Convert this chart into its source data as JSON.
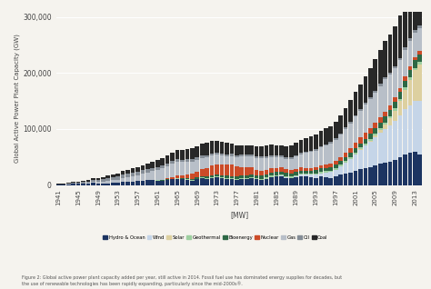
{
  "ylabel": "Global Active Power Plant Capacity (GW)",
  "xlabel": "[MW]",
  "caption": "Figure 2: Global active power plant capacity added per year, still active in 2014. Fossil fuel use has dominated energy supplies for decades, but\nthe use of renewable technologies has been rapidly expanding, particularly since the mid-2000s®.",
  "xtick_years": [
    1941,
    1945,
    1949,
    1953,
    1957,
    1961,
    1965,
    1969,
    1973,
    1977,
    1981,
    1985,
    1989,
    1993,
    1997,
    2001,
    2005,
    2009,
    2013
  ],
  "start_year": 1941,
  "end_year": 2014,
  "categories": [
    "Hydro & Ocean",
    "Wind",
    "Solar",
    "Geothermal",
    "Bioenergy",
    "Nuclear",
    "Gas",
    "Oil",
    "Coal"
  ],
  "colors": [
    "#1c3461",
    "#c5d5e8",
    "#ddd0a0",
    "#9ecfa0",
    "#2d6845",
    "#cc4b28",
    "#b8bfc8",
    "#858d96",
    "#282828"
  ],
  "data": {
    "Hydro & Ocean": [
      1200,
      800,
      1500,
      2500,
      1800,
      2000,
      2200,
      3500,
      3000,
      2800,
      3200,
      4000,
      3500,
      5000,
      5500,
      6000,
      7000,
      8000,
      8500,
      9000,
      8000,
      7500,
      9000,
      10000,
      11000,
      10000,
      9000,
      8000,
      10000,
      12000,
      11000,
      13000,
      14000,
      12000,
      11000,
      10000,
      9000,
      10000,
      11000,
      12000,
      10000,
      9000,
      11000,
      14000,
      15000,
      16000,
      13000,
      12000,
      14000,
      16000,
      15000,
      14000,
      13000,
      15000,
      14000,
      13000,
      15000,
      18000,
      20000,
      22000,
      25000,
      28000,
      30000,
      32000,
      35000,
      38000,
      40000,
      42000,
      45000,
      50000,
      55000,
      58000,
      60000,
      55000
    ],
    "Wind": [
      0,
      0,
      0,
      0,
      0,
      0,
      0,
      0,
      0,
      0,
      0,
      0,
      0,
      0,
      0,
      0,
      0,
      0,
      0,
      0,
      0,
      0,
      0,
      0,
      0,
      0,
      0,
      0,
      0,
      0,
      0,
      0,
      0,
      0,
      0,
      0,
      0,
      0,
      0,
      0,
      200,
      300,
      400,
      500,
      600,
      700,
      800,
      1000,
      1500,
      2000,
      3000,
      4000,
      5000,
      6000,
      8000,
      10000,
      12000,
      15000,
      20000,
      25000,
      30000,
      35000,
      40000,
      45000,
      50000,
      55000,
      60000,
      65000,
      70000,
      75000,
      80000,
      85000,
      90000,
      95000
    ],
    "Solar": [
      0,
      0,
      0,
      0,
      0,
      0,
      0,
      0,
      0,
      0,
      0,
      0,
      0,
      0,
      0,
      0,
      0,
      0,
      0,
      0,
      0,
      0,
      0,
      0,
      0,
      0,
      0,
      0,
      0,
      0,
      0,
      0,
      0,
      0,
      0,
      0,
      0,
      0,
      0,
      0,
      0,
      0,
      0,
      0,
      0,
      0,
      0,
      0,
      0,
      0,
      0,
      0,
      0,
      0,
      0,
      0,
      0,
      0,
      0,
      0,
      0,
      500,
      1000,
      2000,
      3000,
      5000,
      8000,
      12000,
      18000,
      25000,
      35000,
      45000,
      55000,
      65000
    ],
    "Geothermal": [
      0,
      0,
      0,
      0,
      0,
      0,
      0,
      0,
      0,
      0,
      0,
      0,
      0,
      0,
      0,
      0,
      0,
      0,
      200,
      300,
      400,
      500,
      600,
      700,
      800,
      900,
      1000,
      1100,
      1200,
      1300,
      1400,
      1500,
      1600,
      1700,
      1800,
      1900,
      2000,
      2000,
      2000,
      2000,
      2000,
      2000,
      2000,
      2000,
      2000,
      2100,
      2100,
      2200,
      2200,
      2300,
      2400,
      2400,
      2500,
      2500,
      2600,
      2600,
      2700,
      2800,
      2900,
      3000,
      3100,
      3200,
      3300,
      3400,
      3500,
      3600,
      3700,
      3800,
      3900,
      4000,
      4100,
      4200,
      4300,
      4400
    ],
    "Bioenergy": [
      0,
      0,
      0,
      0,
      0,
      0,
      0,
      0,
      0,
      0,
      0,
      0,
      0,
      0,
      0,
      0,
      0,
      0,
      0,
      0,
      200,
      300,
      500,
      700,
      900,
      1200,
      1500,
      1800,
      2000,
      2200,
      2500,
      3000,
      3200,
      3500,
      3800,
      4000,
      4200,
      4500,
      4800,
      5000,
      5200,
      5500,
      5500,
      5500,
      5500,
      5500,
      5500,
      5500,
      5500,
      5500,
      5500,
      5500,
      5800,
      6000,
      6200,
      6500,
      6800,
      7000,
      7200,
      7500,
      7800,
      8000,
      8500,
      9000,
      9500,
      10000,
      10500,
      11000,
      11500,
      12000,
      12500,
      13000,
      13500,
      14000
    ],
    "Nuclear": [
      0,
      0,
      0,
      0,
      0,
      0,
      0,
      0,
      0,
      0,
      0,
      0,
      0,
      0,
      0,
      0,
      0,
      0,
      0,
      0,
      500,
      1000,
      2000,
      3000,
      4000,
      5000,
      7000,
      9000,
      11000,
      13000,
      15000,
      17000,
      18000,
      19000,
      20000,
      20000,
      18000,
      16000,
      14000,
      12000,
      10000,
      9000,
      8500,
      8000,
      7500,
      7000,
      6500,
      6000,
      5500,
      5200,
      5000,
      4800,
      5000,
      5200,
      5500,
      5800,
      6000,
      7000,
      8000,
      9000,
      10000,
      10500,
      11000,
      10500,
      10000,
      9500,
      9000,
      8500,
      8000,
      7500,
      7000,
      6500,
      6000,
      5500
    ],
    "Gas": [
      0,
      200,
      400,
      600,
      800,
      1000,
      1500,
      2000,
      2500,
      3000,
      4000,
      5000,
      6000,
      7000,
      8000,
      9000,
      10000,
      12000,
      14000,
      16000,
      18000,
      20000,
      22000,
      24000,
      25000,
      24000,
      23000,
      22000,
      21000,
      20000,
      19000,
      18000,
      17000,
      16000,
      15000,
      16000,
      17000,
      18000,
      19000,
      20000,
      21000,
      22000,
      21000,
      20000,
      19000,
      18000,
      19000,
      20000,
      22000,
      24000,
      26000,
      28000,
      30000,
      32000,
      34000,
      36000,
      38000,
      40000,
      42000,
      44000,
      46000,
      48000,
      50000,
      52000,
      54000,
      56000,
      58000,
      55000,
      52000,
      50000,
      48000,
      46000,
      44000,
      42000
    ],
    "Oil": [
      200,
      400,
      800,
      1200,
      1600,
      2000,
      2500,
      3000,
      3500,
      4000,
      4500,
      5000,
      5500,
      6000,
      6500,
      7000,
      7000,
      6500,
      6000,
      5500,
      5200,
      5000,
      4800,
      4600,
      4500,
      4400,
      4300,
      4200,
      4100,
      4000,
      3900,
      3800,
      3700,
      3600,
      3500,
      3400,
      3300,
      3200,
      3100,
      3000,
      2900,
      2800,
      2800,
      2800,
      2800,
      2800,
      2700,
      2700,
      2600,
      2600,
      2500,
      2500,
      2500,
      2500,
      2500,
      2500,
      2600,
      2700,
      2800,
      2900,
      3000,
      3100,
      3200,
      3300,
      3400,
      3500,
      3600,
      3700,
      3800,
      3900,
      4000,
      4100,
      4200,
      4300
    ],
    "Coal": [
      600,
      800,
      1200,
      1600,
      2000,
      2500,
      3000,
      3500,
      4000,
      4500,
      5000,
      5500,
      6000,
      6500,
      7000,
      7500,
      8000,
      9000,
      10000,
      11000,
      12000,
      13000,
      14000,
      15000,
      16000,
      17000,
      18000,
      19000,
      20000,
      21000,
      22000,
      23000,
      22000,
      21000,
      20000,
      19000,
      18000,
      17000,
      16000,
      17000,
      18000,
      19000,
      20000,
      19000,
      18000,
      19000,
      20000,
      21000,
      22000,
      23000,
      24000,
      25000,
      26000,
      27000,
      28000,
      29000,
      30000,
      32000,
      35000,
      38000,
      41000,
      44000,
      48000,
      52000,
      56000,
      60000,
      64000,
      68000,
      72000,
      76000,
      80000,
      82000,
      80000,
      78000
    ]
  },
  "ylim": [
    0,
    310000
  ],
  "yticks": [
    0,
    100000,
    200000,
    300000
  ],
  "ytick_labels": [
    "0",
    "100,000",
    "200,000",
    "300,000"
  ],
  "bg_color": "#f5f3ee"
}
